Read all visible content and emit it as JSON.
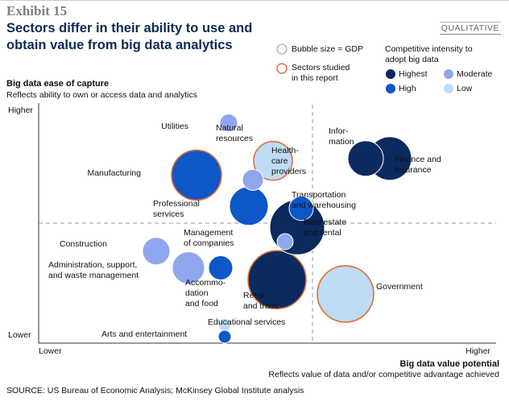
{
  "exhibit": "Exhibit 15",
  "title_lines": [
    "Sectors differ in their ability to use and",
    "obtain value from big data analytics"
  ],
  "badge": "QUALITATIVE",
  "legend": {
    "size_note": "Bubble size = GDP",
    "studied_lines": [
      "Sectors studied",
      "in this report"
    ],
    "intensity_title_lines": [
      "Competitive intensity to",
      "adopt big data"
    ],
    "levels": [
      {
        "key": "highest",
        "label": "Highest",
        "color": "#0b2a5e"
      },
      {
        "key": "moderate",
        "label": "Moderate",
        "color": "#8fa6ef"
      },
      {
        "key": "high",
        "label": "High",
        "color": "#0d57c6"
      },
      {
        "key": "low",
        "label": "Low",
        "color": "#bedcf6"
      }
    ],
    "studied_border_color": "#e0703a"
  },
  "y_axis": {
    "title": "Big data ease of capture",
    "subtitle": "Reflects ability to own or access data and analytics",
    "high": "Higher",
    "low": "Lower"
  },
  "x_axis": {
    "title": "Big data value potential",
    "subtitle": "Reflects value of data and/or competitive advantage achieved",
    "low": "Lower",
    "high": "Higher"
  },
  "source": "SOURCE: US Bureau of Economic Analysis; McKinsey Global Institute analysis",
  "chart_data": {
    "type": "scatter",
    "title": "Sectors differ in their ability to use and obtain value from big data analytics",
    "xlabel": "Big data value potential",
    "ylabel": "Big data ease of capture",
    "xlim": [
      0,
      10
    ],
    "ylim": [
      0,
      10
    ],
    "note": "Qualitative positions; bubble size = GDP (relative units); x/y on 0-10 scale from Lower to Higher",
    "points": [
      {
        "name": "Utilities",
        "label_lines": [
          "Utilities"
        ],
        "x": 3.8,
        "y": 9.0,
        "size": 11,
        "intensity": "moderate",
        "studied": false
      },
      {
        "name": "Natural resources",
        "label_lines": [
          "Natural",
          "resources"
        ],
        "x": 4.4,
        "y": 6.6,
        "size": 13,
        "intensity": "moderate",
        "studied": false
      },
      {
        "name": "Health-care providers",
        "label_lines": [
          "Health-",
          "care",
          "providers"
        ],
        "x": 4.9,
        "y": 7.4,
        "size": 24,
        "intensity": "low",
        "studied": true
      },
      {
        "name": "Manufacturing",
        "label_lines": [
          "Manufacturing"
        ],
        "x": 3.0,
        "y": 6.8,
        "size": 31,
        "intensity": "high",
        "studied": true
      },
      {
        "name": "Information",
        "label_lines": [
          "Infor-",
          "mation"
        ],
        "x": 7.2,
        "y": 7.5,
        "size": 22,
        "intensity": "highest",
        "studied": false
      },
      {
        "name": "Finance and insurance",
        "label_lines": [
          "Finance and",
          "insurance"
        ],
        "x": 7.8,
        "y": 7.5,
        "size": 27,
        "intensity": "highest",
        "studied": false
      },
      {
        "name": "Professional services",
        "label_lines": [
          "Professional",
          "services"
        ],
        "x": 4.3,
        "y": 5.5,
        "size": 24,
        "intensity": "high",
        "studied": false
      },
      {
        "name": "Transportation and warehousing",
        "label_lines": [
          "Transportation",
          "and warehousing"
        ],
        "x": 5.6,
        "y": 5.4,
        "size": 15,
        "intensity": "high",
        "studied": false
      },
      {
        "name": "Real estate and rental",
        "label_lines": [
          "Real estate",
          "and rental"
        ],
        "x": 5.5,
        "y": 4.6,
        "size": 34,
        "intensity": "highest",
        "studied": false
      },
      {
        "name": "Management of companies",
        "label_lines": [
          "Management",
          "of companies"
        ],
        "x": 5.2,
        "y": 4.0,
        "size": 10,
        "intensity": "moderate",
        "studied": false
      },
      {
        "name": "Construction",
        "label_lines": [
          "Construction"
        ],
        "x": 2.0,
        "y": 3.6,
        "size": 17,
        "intensity": "moderate",
        "studied": false
      },
      {
        "name": "Administration, support, and waste management",
        "label_lines": [
          "Administration, support,",
          "and waste management"
        ],
        "x": 2.8,
        "y": 2.9,
        "size": 20,
        "intensity": "moderate",
        "studied": false
      },
      {
        "name": "Accommodation and food",
        "label_lines": [
          "Accommo-",
          "dation",
          "and food"
        ],
        "x": 3.6,
        "y": 2.9,
        "size": 15,
        "intensity": "high",
        "studied": false
      },
      {
        "name": "Retail and trade",
        "label_lines": [
          "Retail",
          "and trade"
        ],
        "x": 5.0,
        "y": 2.4,
        "size": 36,
        "intensity": "highest",
        "studied": true
      },
      {
        "name": "Government",
        "label_lines": [
          "Government"
        ],
        "x": 6.7,
        "y": 1.8,
        "size": 35,
        "intensity": "low",
        "studied": true
      },
      {
        "name": "Educational services",
        "label_lines": [
          "Educational services"
        ],
        "x": 3.7,
        "y": 0.5,
        "size": 8,
        "intensity": "low",
        "studied": false
      },
      {
        "name": "Arts and entertainment",
        "label_lines": [
          "Arts and entertainment"
        ],
        "x": 3.7,
        "y": 0.0,
        "size": 8,
        "intensity": "high",
        "studied": false
      }
    ]
  }
}
